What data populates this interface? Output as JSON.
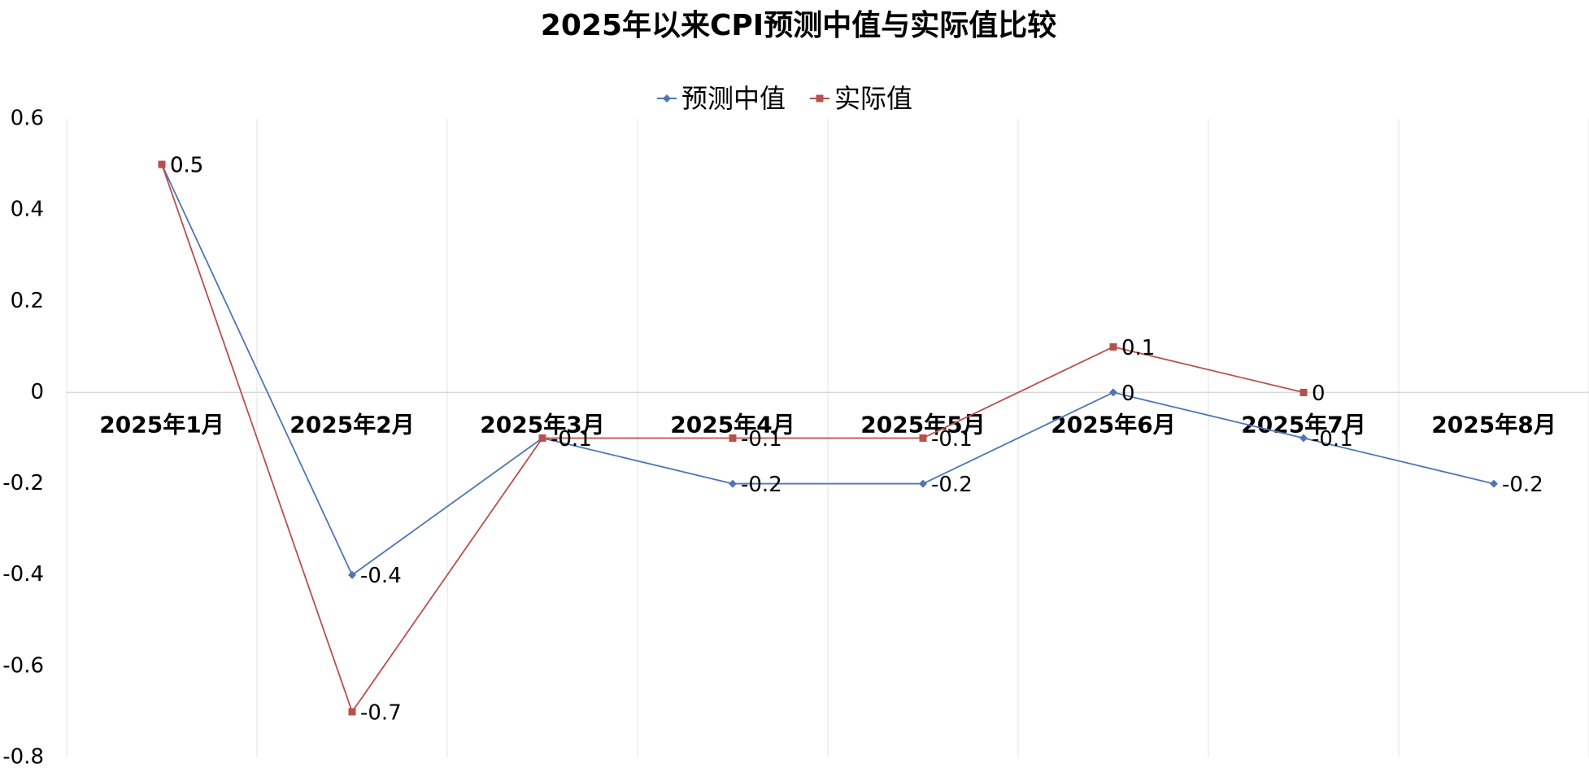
{
  "chart_data": {
    "type": "line",
    "title": "2025年以来CPI预测中值与实际值比较",
    "categories": [
      "2025年1月",
      "2025年2月",
      "2025年3月",
      "2025年4月",
      "2025年5月",
      "2025年6月",
      "2025年7月",
      "2025年8月"
    ],
    "series": [
      {
        "name": "预测中值",
        "color": "#4f76b4",
        "marker": "diamond",
        "values": [
          0.5,
          -0.4,
          -0.1,
          -0.2,
          -0.2,
          0,
          -0.1,
          -0.2
        ]
      },
      {
        "name": "实际值",
        "color": "#b8504b",
        "marker": "square",
        "values": [
          0.5,
          -0.7,
          -0.1,
          -0.1,
          -0.1,
          0.1,
          0,
          null
        ]
      }
    ],
    "ylim": [
      -0.8,
      0.6
    ],
    "yticks": [
      -0.8,
      -0.6,
      -0.4,
      -0.2,
      0,
      0.2,
      0.4,
      0.6
    ],
    "grid": true,
    "legend": "top"
  }
}
